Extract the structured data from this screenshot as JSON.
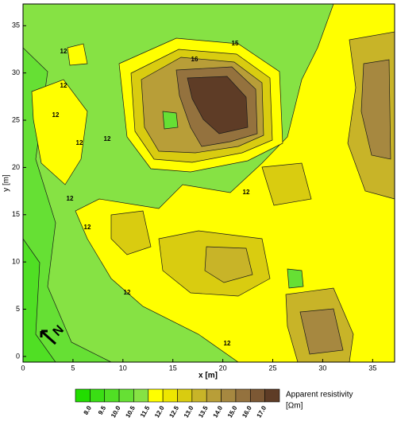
{
  "chart_data": {
    "type": "contour",
    "xlabel": "x [m]",
    "ylabel": "y [m]",
    "xlim": [
      0,
      37.2
    ],
    "ylim": [
      -0.6,
      37.3
    ],
    "xticks": [
      0,
      5,
      10,
      15,
      20,
      25,
      30,
      35
    ],
    "yticks": [
      0,
      5,
      10,
      15,
      20,
      25,
      30,
      35
    ],
    "colorbar_title": "Apparent resistivity",
    "colorbar_unit": "[Ωm]",
    "levels": [
      {
        "value": 8,
        "label": "8.0"
      },
      9.5,
      {
        "value": 10,
        "label": "10.0"
      },
      10.5,
      11.5,
      {
        "value": 12,
        "label": "12.0"
      },
      12.5,
      {
        "value": 13,
        "label": "13.0"
      },
      13.5,
      {
        "value": 14,
        "label": "14.0"
      },
      {
        "value": 15,
        "label": "15.0"
      },
      {
        "value": 16,
        "label": "16.0"
      },
      {
        "value": 17,
        "label": "17.0"
      }
    ],
    "colors": [
      "#22dd00",
      "#3ade14",
      "#50df24",
      "#66e034",
      "#86e244",
      "#ffff00",
      "#eee600",
      "#d9cc10",
      "#c8b428",
      "#b89e38",
      "#a68840",
      "#94723e",
      "#7c5834",
      "#5e3c26"
    ],
    "contour_labels": [
      "12",
      "12",
      "12",
      "12",
      "12",
      "12",
      "12",
      "12",
      "12",
      "12",
      "15",
      "16"
    ],
    "north_label": "N"
  }
}
